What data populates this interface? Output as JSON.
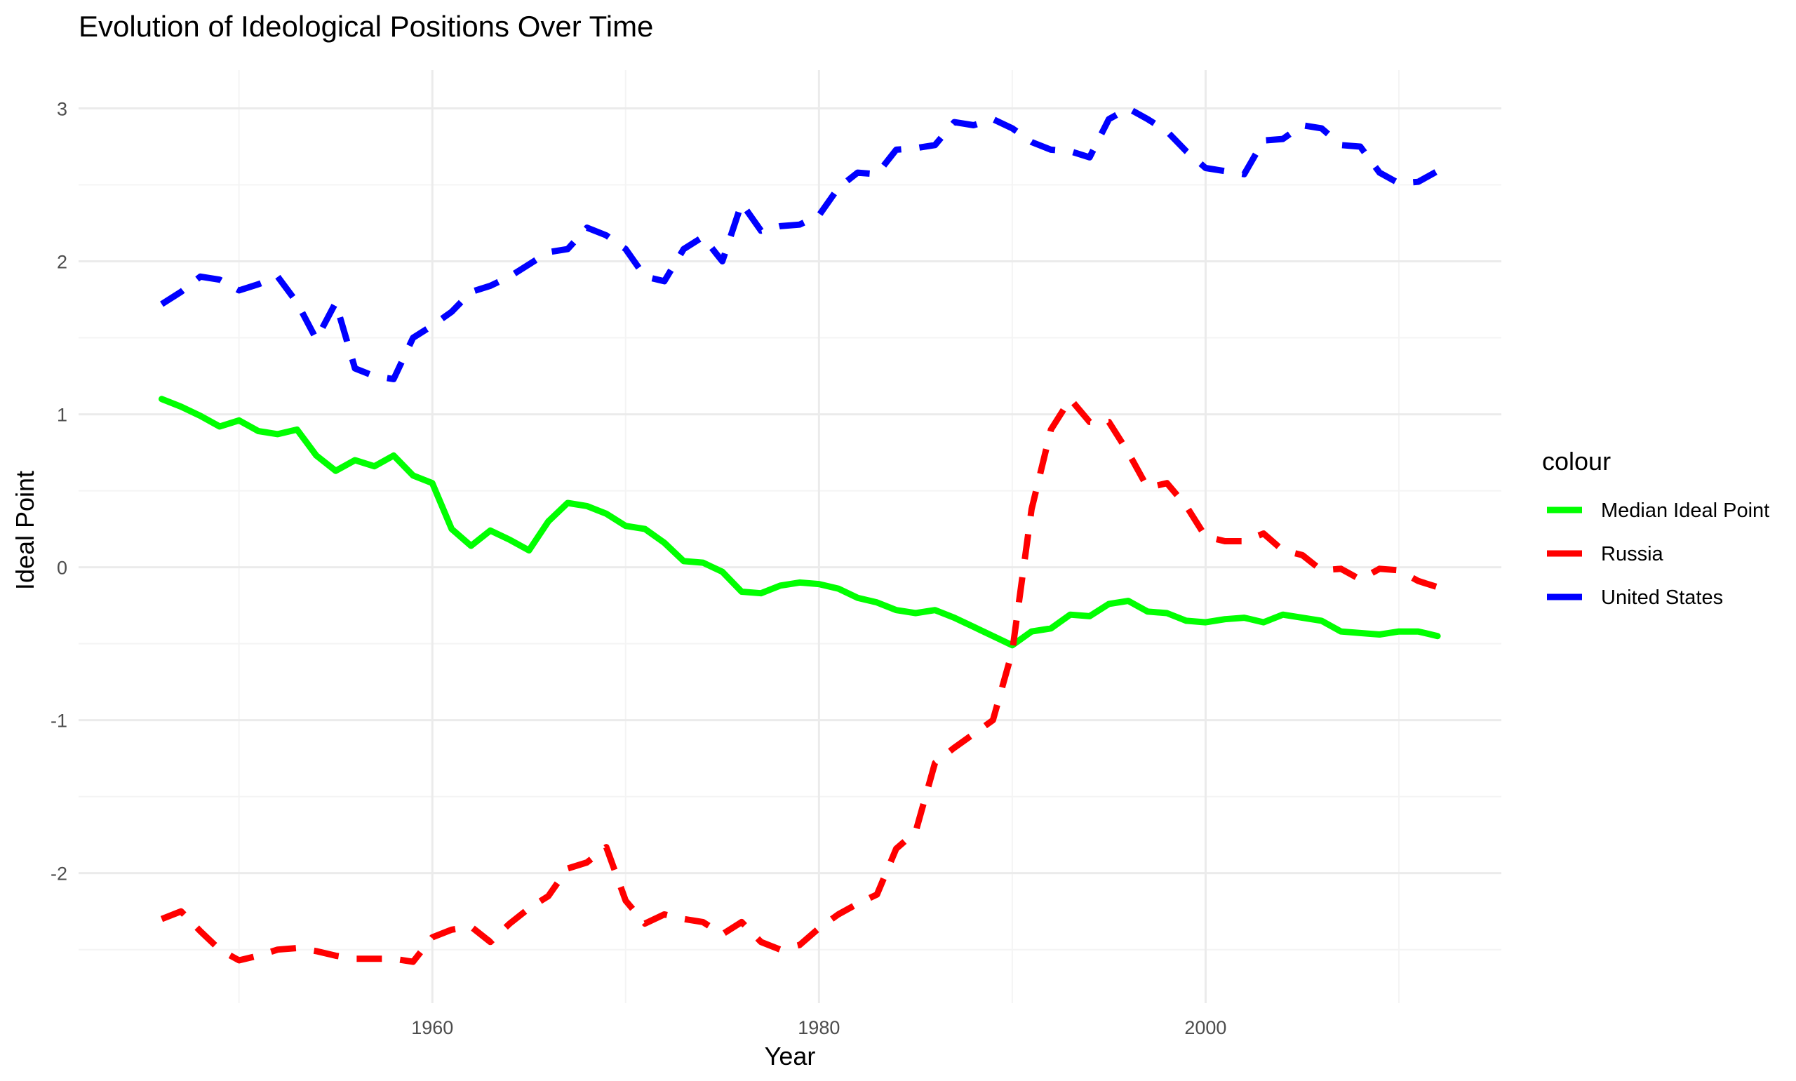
{
  "chart_data": {
    "type": "line",
    "title": "Evolution of Ideological Positions Over Time",
    "xlabel": "Year",
    "ylabel": "Ideal Point",
    "xlim": [
      1941.7,
      2015.3
    ],
    "ylim": [
      -2.85,
      3.25
    ],
    "x_ticks": [
      1960,
      1980,
      2000
    ],
    "x_tick_labels": [
      "1960",
      "1980",
      "2000"
    ],
    "y_ticks": [
      3,
      2,
      1,
      0,
      -1,
      -2
    ],
    "y_tick_labels": [
      "3",
      "2",
      "1",
      "0",
      "-1",
      "-2"
    ],
    "x_minor_ticks": [
      1950,
      1970,
      1990,
      2010
    ],
    "y_minor_ticks": [
      2.5,
      1.5,
      0.5,
      -0.5,
      -1.5,
      -2.5
    ],
    "grid": true,
    "legend_title": "colour",
    "legend_position": "right",
    "x": [
      1946,
      1947,
      1948,
      1949,
      1950,
      1951,
      1952,
      1953,
      1954,
      1955,
      1956,
      1957,
      1958,
      1959,
      1960,
      1961,
      1962,
      1963,
      1964,
      1965,
      1966,
      1967,
      1968,
      1969,
      1970,
      1971,
      1972,
      1973,
      1974,
      1975,
      1976,
      1977,
      1978,
      1979,
      1980,
      1981,
      1982,
      1983,
      1984,
      1985,
      1986,
      1987,
      1988,
      1989,
      1990,
      1991,
      1992,
      1993,
      1994,
      1995,
      1996,
      1997,
      1998,
      1999,
      2000,
      2001,
      2002,
      2003,
      2004,
      2005,
      2006,
      2007,
      2008,
      2009,
      2010,
      2011,
      2012
    ],
    "series": [
      {
        "name": "Median Ideal Point",
        "color": "#00ff00",
        "dashed": false,
        "values": [
          1.1,
          1.05,
          0.99,
          0.92,
          0.96,
          0.89,
          0.87,
          0.9,
          0.73,
          0.63,
          0.7,
          0.66,
          0.73,
          0.6,
          0.55,
          0.25,
          0.14,
          0.24,
          0.18,
          0.11,
          0.3,
          0.42,
          0.4,
          0.35,
          0.27,
          0.25,
          0.16,
          0.04,
          0.03,
          -0.03,
          -0.16,
          -0.17,
          -0.12,
          -0.1,
          -0.11,
          -0.14,
          -0.2,
          -0.23,
          -0.28,
          -0.3,
          -0.28,
          -0.33,
          -0.39,
          -0.45,
          -0.51,
          -0.42,
          -0.4,
          -0.31,
          -0.32,
          -0.24,
          -0.22,
          -0.29,
          -0.3,
          -0.35,
          -0.36,
          -0.34,
          -0.33,
          -0.36,
          -0.31,
          -0.33,
          -0.35,
          -0.42,
          -0.43,
          -0.44,
          -0.42,
          -0.42,
          -0.45
        ]
      },
      {
        "name": "Russia",
        "color": "#ff0000",
        "dashed": true,
        "values": [
          -2.3,
          -2.25,
          -2.38,
          -2.5,
          -2.57,
          -2.54,
          -2.5,
          -2.49,
          -2.51,
          -2.54,
          -2.56,
          -2.56,
          -2.56,
          -2.58,
          -2.42,
          -2.37,
          -2.35,
          -2.45,
          -2.33,
          -2.23,
          -2.15,
          -1.97,
          -1.93,
          -1.83,
          -2.18,
          -2.33,
          -2.27,
          -2.3,
          -2.32,
          -2.4,
          -2.32,
          -2.45,
          -2.5,
          -2.47,
          -2.36,
          -2.27,
          -2.2,
          -2.14,
          -1.84,
          -1.73,
          -1.28,
          -1.18,
          -1.09,
          -1.0,
          -0.55,
          0.38,
          0.9,
          1.1,
          0.95,
          0.95,
          0.75,
          0.52,
          0.55,
          0.4,
          0.2,
          0.17,
          0.17,
          0.22,
          0.11,
          0.08,
          -0.02,
          -0.01,
          -0.08,
          -0.01,
          -0.02,
          -0.09,
          -0.13
        ]
      },
      {
        "name": "United States",
        "color": "#0000ff",
        "dashed": true,
        "values": [
          1.72,
          1.8,
          1.9,
          1.88,
          1.81,
          1.85,
          1.9,
          1.73,
          1.49,
          1.73,
          1.3,
          1.25,
          1.23,
          1.5,
          1.58,
          1.67,
          1.8,
          1.84,
          1.9,
          1.98,
          2.06,
          2.08,
          2.22,
          2.17,
          2.08,
          1.9,
          1.87,
          2.08,
          2.16,
          2.0,
          2.38,
          2.2,
          2.23,
          2.24,
          2.3,
          2.48,
          2.58,
          2.57,
          2.73,
          2.74,
          2.76,
          2.91,
          2.89,
          2.93,
          2.87,
          2.78,
          2.73,
          2.72,
          2.68,
          2.93,
          3.0,
          2.93,
          2.85,
          2.72,
          2.61,
          2.59,
          2.57,
          2.79,
          2.8,
          2.89,
          2.87,
          2.76,
          2.75,
          2.58,
          2.51,
          2.52,
          2.59
        ]
      }
    ]
  }
}
